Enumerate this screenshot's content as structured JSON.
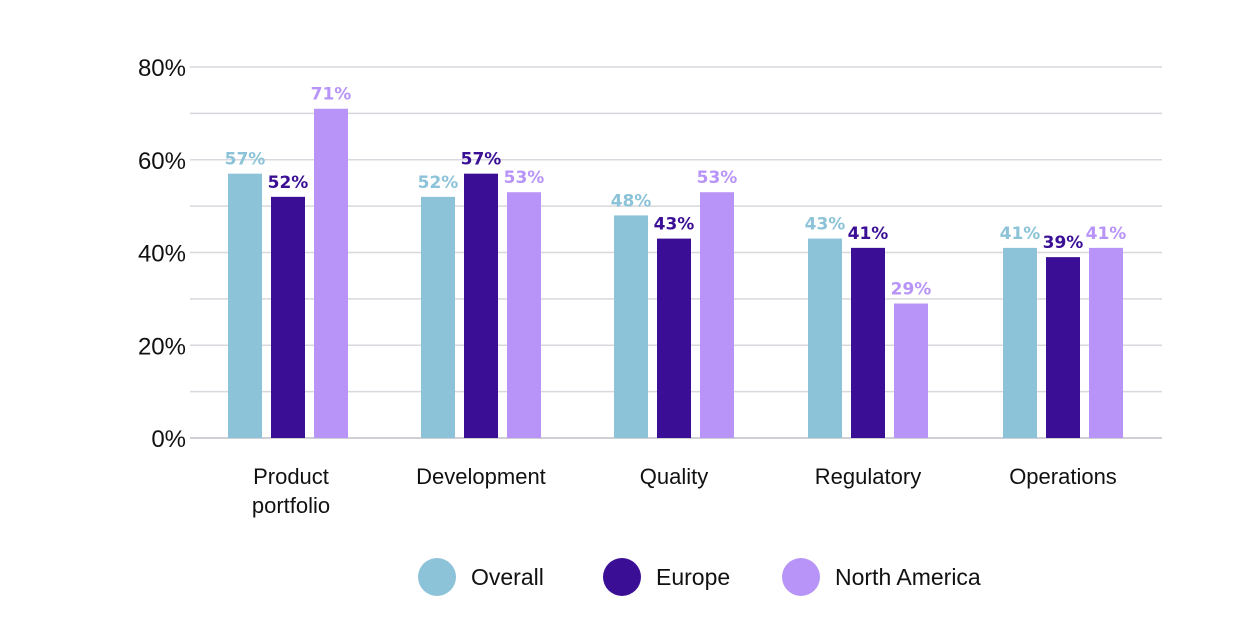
{
  "chart_data": {
    "type": "bar",
    "title": "",
    "xlabel": "",
    "ylabel": "",
    "categories": [
      [
        "Product",
        "portfolio"
      ],
      [
        "Development"
      ],
      [
        "Quality"
      ],
      [
        "Regulatory"
      ],
      [
        "Operations"
      ]
    ],
    "series": [
      {
        "name": "Overall",
        "color": "#8cc3d8",
        "values": [
          57,
          52,
          48,
          43,
          41
        ]
      },
      {
        "name": "Europe",
        "color": "#3b0e96",
        "values": [
          52,
          57,
          43,
          41,
          39
        ]
      },
      {
        "name": "North America",
        "color": "#b894f8",
        "values": [
          71,
          53,
          53,
          29,
          41
        ]
      }
    ],
    "ylim": [
      0,
      80
    ],
    "yticks": [
      0,
      20,
      40,
      60,
      80
    ],
    "ytick_labels": [
      "0%",
      "20%",
      "40%",
      "60%",
      "80%"
    ],
    "value_suffix": "%",
    "grid": true,
    "legend_position": "bottom"
  }
}
